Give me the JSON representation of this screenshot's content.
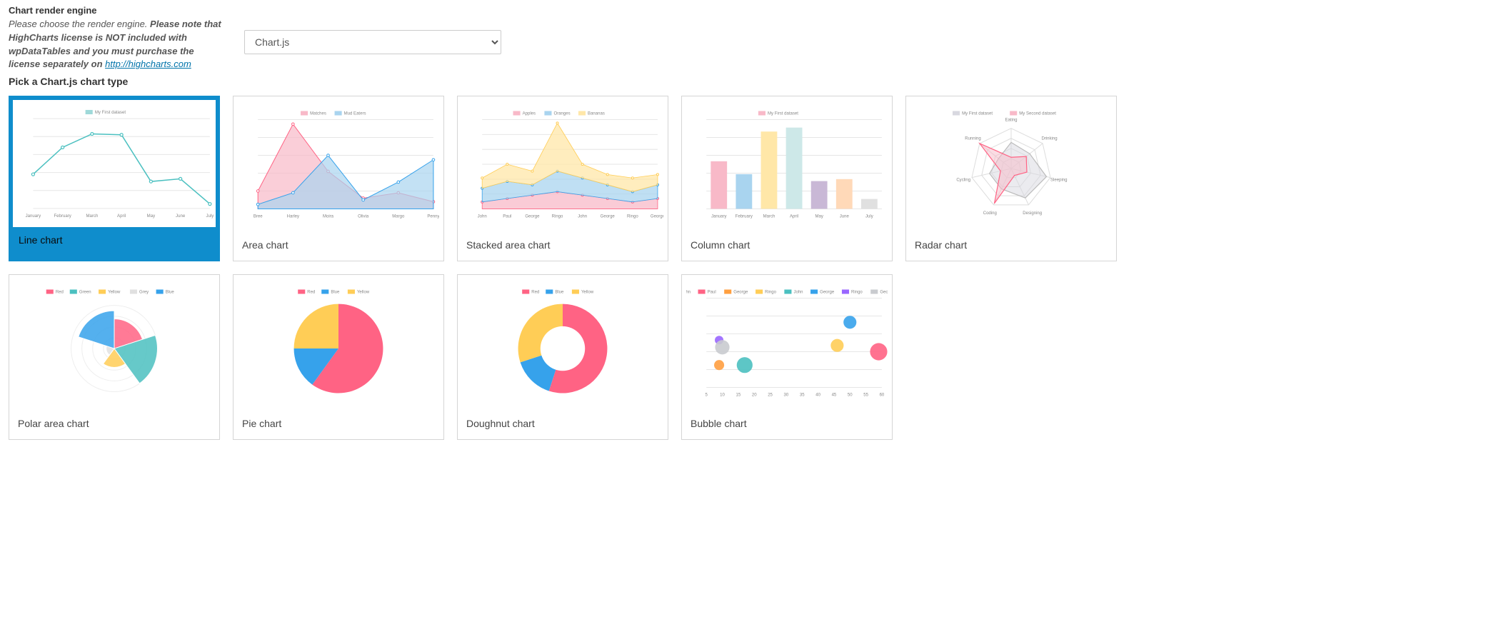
{
  "header": {
    "title": "Chart render engine",
    "desc_prefix": "Please choose the render engine. ",
    "desc_bold": "Please note that HighCharts license is NOT included with wpDataTables and you must purchase the license separately on ",
    "link_text": "http://highcharts.com"
  },
  "engine_select": {
    "value": "Chart.js",
    "options": [
      "Chart.js"
    ]
  },
  "section_label": "Pick a Chart.js chart type",
  "selected_index": 0,
  "cards": [
    {
      "label": "Line chart"
    },
    {
      "label": "Area chart"
    },
    {
      "label": "Stacked area chart"
    },
    {
      "label": "Column chart"
    },
    {
      "label": "Radar chart"
    },
    {
      "label": "Polar area chart"
    },
    {
      "label": "Pie chart"
    },
    {
      "label": "Doughnut chart"
    },
    {
      "label": "Bubble chart"
    }
  ],
  "palette": {
    "teal": "#4bc0c0",
    "teal_soft": "#9fd9d9",
    "pink": "#ff6384",
    "pink_light": "#f8b9c8",
    "blue": "#36a2eb",
    "blue_light": "#a9d4ef",
    "yellow": "#ffcd56",
    "yellow_light": "#ffe7a8",
    "purple_light": "#c9b8d6",
    "purple": "#9966ff",
    "orange": "#ff9f40",
    "grey": "#c9cbcf",
    "grid": "#e6e6e6",
    "axis_text": "#888888"
  },
  "charts": {
    "line": {
      "type": "line",
      "legend": [
        "My First dataset"
      ],
      "legend_colors": [
        "#9fd9d9"
      ],
      "x_labels": [
        "January",
        "February",
        "March",
        "April",
        "May",
        "June",
        "July"
      ],
      "points": [
        38,
        68,
        83,
        82,
        30,
        33,
        5
      ],
      "line_color": "#4bc0c0",
      "ylim": [
        0,
        100
      ]
    },
    "area": {
      "type": "area",
      "legend": [
        "Matches",
        "Mud Eaters"
      ],
      "legend_colors": [
        "#f8b9c8",
        "#a9d4ef"
      ],
      "x_labels": [
        "Bree",
        "Harley",
        "Moira",
        "Olivia",
        "Margo",
        "Penny"
      ],
      "series": [
        {
          "color": "#f8b9c8",
          "stroke": "#ff6384",
          "points": [
            20,
            95,
            42,
            12,
            18,
            8
          ]
        },
        {
          "color": "#a9d4ef",
          "stroke": "#36a2eb",
          "points": [
            5,
            18,
            60,
            10,
            30,
            55
          ]
        }
      ],
      "ylim": [
        0,
        100
      ]
    },
    "stacked": {
      "type": "stacked-area",
      "legend": [
        "Apples",
        "Oranges",
        "Bananas"
      ],
      "legend_colors": [
        "#f8b9c8",
        "#a9d4ef",
        "#ffe7a8"
      ],
      "x_labels": [
        "John",
        "Paul",
        "George",
        "Ringo",
        "John",
        "George",
        "Ringo",
        "George"
      ],
      "series": [
        {
          "color": "#f8b9c8",
          "stroke": "#ff6384",
          "points": [
            2,
            3,
            4,
            5,
            4,
            3,
            2,
            3
          ]
        },
        {
          "color": "#a9d4ef",
          "stroke": "#36a2eb",
          "points": [
            4,
            5,
            3,
            6,
            5,
            4,
            3,
            4
          ]
        },
        {
          "color": "#ffe7a8",
          "stroke": "#ffcd56",
          "points": [
            3,
            5,
            4,
            14,
            4,
            3,
            4,
            3
          ]
        }
      ],
      "ylim": [
        0,
        26
      ]
    },
    "column": {
      "type": "bar",
      "legend": [
        "My First dataset"
      ],
      "legend_colors": [
        "#f8b9c8"
      ],
      "x_labels": [
        "January",
        "February",
        "March",
        "April",
        "May",
        "June",
        "July"
      ],
      "values": [
        48,
        35,
        78,
        82,
        28,
        30,
        10
      ],
      "colors": [
        "#f8b9c8",
        "#a9d4ef",
        "#ffe7a8",
        "#cde8e8",
        "#c9b8d6",
        "#ffd9b8",
        "#e0e0e0"
      ],
      "ylim": [
        0,
        90
      ]
    },
    "radar": {
      "type": "radar",
      "legend": [
        "My First dataset",
        "My Second dataset"
      ],
      "legend_colors": [
        "#d8d8e0",
        "#f8b9c8"
      ],
      "axes": [
        "Eating",
        "Drinking",
        "Sleeping",
        "Designing",
        "Coding",
        "Cycling",
        "Running"
      ],
      "series": [
        {
          "color": "#d8d8e0",
          "stroke": "#bbb",
          "points": [
            65,
            59,
            90,
            81,
            56,
            55,
            40
          ]
        },
        {
          "color": "#f8b9c8",
          "stroke": "#ff6384",
          "points": [
            28,
            48,
            40,
            19,
            96,
            27,
            100
          ]
        }
      ],
      "max": 100
    },
    "polar": {
      "type": "polar",
      "legend": [
        "Red",
        "Green",
        "Yellow",
        "Grey",
        "Blue"
      ],
      "legend_colors": [
        "#ff6384",
        "#4bc0c0",
        "#ffcd56",
        "#e0e0e0",
        "#36a2eb"
      ],
      "values": [
        11,
        16,
        7,
        3,
        14
      ],
      "colors": [
        "#ff6384",
        "#4bc0c0",
        "#ffcd56",
        "#e0e0e0",
        "#36a2eb"
      ],
      "max": 16
    },
    "pie": {
      "type": "pie",
      "legend": [
        "Red",
        "Blue",
        "Yellow"
      ],
      "legend_colors": [
        "#ff6384",
        "#36a2eb",
        "#ffcd56"
      ],
      "values": [
        60,
        15,
        25
      ],
      "colors": [
        "#ff6384",
        "#36a2eb",
        "#ffcd56"
      ]
    },
    "doughnut": {
      "type": "doughnut",
      "legend": [
        "Red",
        "Blue",
        "Yellow"
      ],
      "legend_colors": [
        "#ff6384",
        "#36a2eb",
        "#ffcd56"
      ],
      "values": [
        55,
        15,
        30
      ],
      "colors": [
        "#ff6384",
        "#36a2eb",
        "#ffcd56"
      ]
    },
    "bubble": {
      "type": "bubble",
      "legend": [
        "John",
        "Paul",
        "George",
        "Ringo",
        "John",
        "George",
        "Ringo",
        "George"
      ],
      "legend_colors": [
        "#777",
        "#ff6384",
        "#ff9f40",
        "#ffcd56",
        "#4bc0c0",
        "#36a2eb",
        "#9966ff",
        "#c9cbcf"
      ],
      "xlim": [
        5,
        60
      ],
      "ylim": [
        0,
        10
      ],
      "x_ticks": [
        5,
        10,
        15,
        20,
        25,
        30,
        35,
        40,
        45,
        50,
        55,
        60
      ],
      "points": [
        {
          "x": 9,
          "y": 5.3,
          "r": 6,
          "color": "#9966ff"
        },
        {
          "x": 9,
          "y": 2.5,
          "r": 7,
          "color": "#ff9f40"
        },
        {
          "x": 10,
          "y": 4.5,
          "r": 10,
          "color": "#c9cbcf"
        },
        {
          "x": 17,
          "y": 2.5,
          "r": 11,
          "color": "#4bc0c0"
        },
        {
          "x": 46,
          "y": 4.7,
          "r": 9,
          "color": "#ffcd56"
        },
        {
          "x": 50,
          "y": 7.3,
          "r": 9,
          "color": "#36a2eb"
        },
        {
          "x": 59,
          "y": 4.0,
          "r": 12,
          "color": "#ff6384"
        }
      ]
    }
  }
}
